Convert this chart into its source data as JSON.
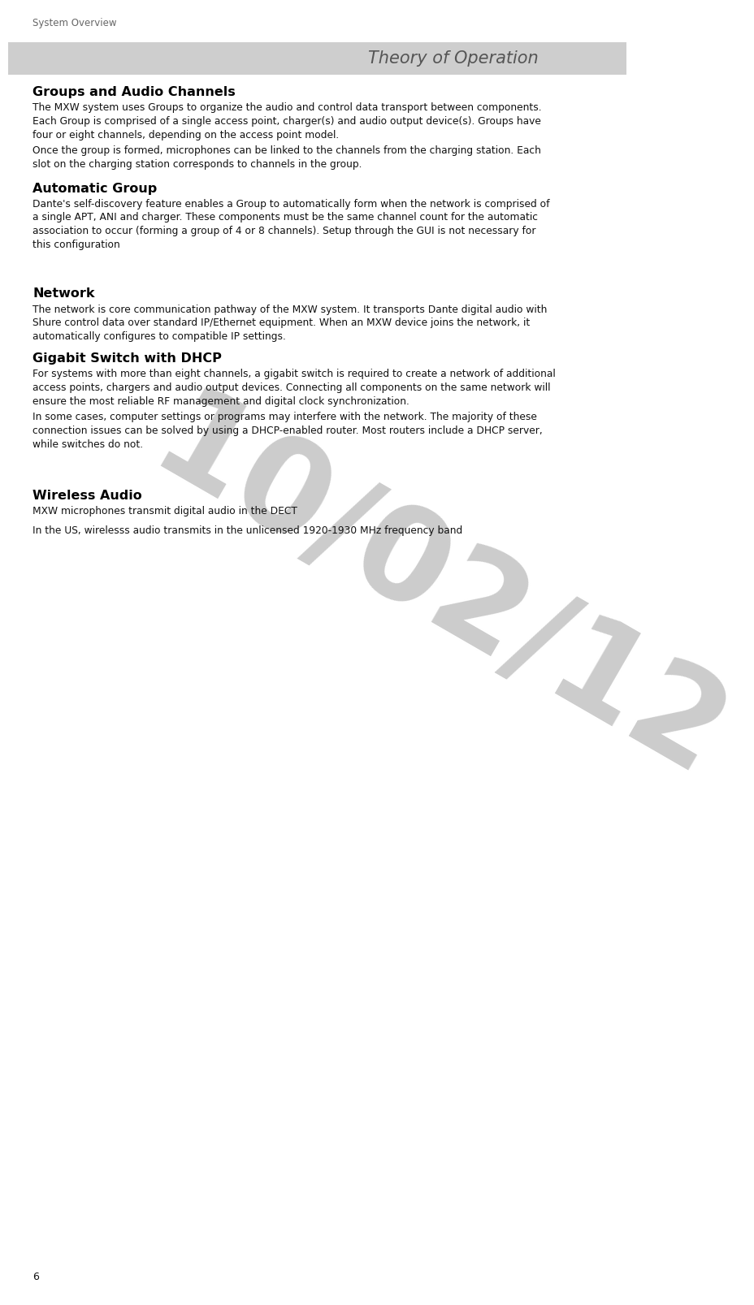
{
  "page_number": "6",
  "header_label": "System Overview",
  "section_title": "Theory of Operation",
  "section_title_bg": "#cecece",
  "section_title_color": "#555555",
  "watermark_text": "10/02/12",
  "watermark_color": "#cccccc",
  "bg_color": "#ffffff",
  "text_color": "#111111",
  "heading_color": "#000000",
  "body_sections": [
    {
      "heading": "Groups and Audio Channels",
      "paragraphs": [
        "The MXW system uses Groups to organize the audio and control data transport between components.\nEach Group is comprised of a single access point, charger(s) and audio output device(s). Groups have\nfour or eight channels, depending on the access point model.",
        "Once the group is formed, microphones can be linked to the channels from the charging station. Each\nslot on the charging station corresponds to channels in the group."
      ],
      "extra_space_before": false
    },
    {
      "heading": "Automatic Group",
      "paragraphs": [
        "Dante's self-discovery feature enables a Group to automatically form when the network is comprised of\na single APT, ANI and charger. These components must be the same channel count for the automatic\nassociation to occur (forming a group of 4 or 8 channels). Setup through the GUI is not necessary for\nthis configuration"
      ],
      "extra_space_before": false
    },
    {
      "heading": "Network",
      "paragraphs": [
        "The network is core communication pathway of the MXW system. It transports Dante digital audio with\nShure control data over standard IP/Ethernet equipment. When an MXW device joins the network, it\nautomatically configures to compatible IP settings."
      ],
      "extra_space_before": true
    },
    {
      "heading": "Gigabit Switch with DHCP",
      "paragraphs": [
        "For systems with more than eight channels, a gigabit switch is required to create a network of additional\naccess points, chargers and audio output devices. Connecting all components on the same network will\nensure the most reliable RF management and digital clock synchronization.",
        "In some cases, computer settings or programs may interfere with the network. The majority of these\nconnection issues can be solved by using a DHCP-enabled router. Most routers include a DHCP server,\nwhile switches do not."
      ],
      "extra_space_before": false
    },
    {
      "heading": "Wireless Audio",
      "paragraphs": [
        "MXW microphones transmit digital audio in the DECT",
        "In the US, wirelesss audio transmits in the unlicensed 1920-1930 MHz frequency band"
      ],
      "extra_space_before": true
    }
  ]
}
